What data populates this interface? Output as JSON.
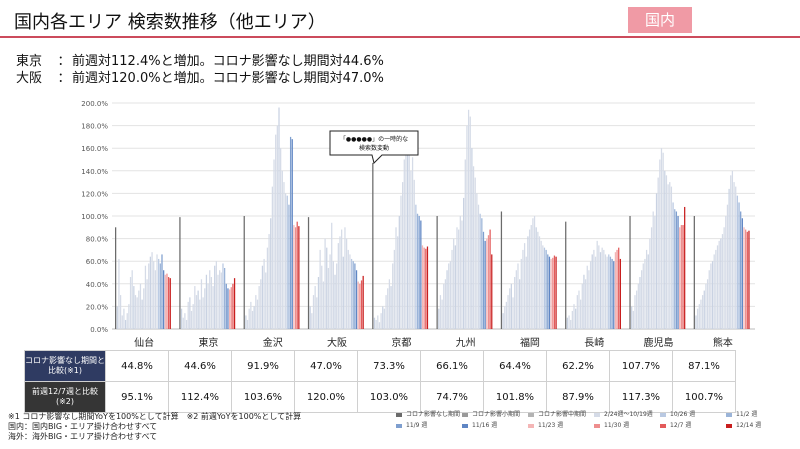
{
  "header": {
    "title": "国内各エリア 検索数推移（他エリア）",
    "badge": "国内"
  },
  "summary": [
    {
      "region": "東京",
      "sep": "：",
      "text": "前週対112.4%と増加。コロナ影響なし期間対44.6%"
    },
    {
      "region": "大阪",
      "sep": "：",
      "text": "前週対120.0%と増加。コロナ影響なし期間対47.0%"
    }
  ],
  "callout": {
    "line1": "「●●●●●」の一時的な",
    "line2": "検索数変動"
  },
  "table": {
    "row1_label": "コロナ影響なし期間と比較(※1)",
    "row2_label": "前週12/7週と比較(※2)",
    "row1": [
      "44.8%",
      "44.6%",
      "91.9%",
      "47.0%",
      "73.3%",
      "66.1%",
      "64.4%",
      "62.2%",
      "107.7%",
      "87.1%"
    ],
    "row2": [
      "95.1%",
      "112.4%",
      "103.6%",
      "120.0%",
      "103.0%",
      "74.7%",
      "101.8%",
      "87.9%",
      "117.3%",
      "100.7%"
    ]
  },
  "footnotes": {
    "note1": "※1 コロナ影響なし期間YoYを100%として計算　※2 前週YoYを100%として計算",
    "note2": "国内：国内BIG・エリア掛け合わせすべて",
    "note3": "海外：海外BIG・エリア掛け合わせすべて"
  },
  "chart_data": {
    "type": "bar",
    "ylim": [
      0,
      200
    ],
    "yticks": [
      "0.0%",
      "20.0%",
      "40.0%",
      "60.0%",
      "80.0%",
      "100.0%",
      "120.0%",
      "140.0%",
      "160.0%",
      "180.0%",
      "200.0%"
    ],
    "categories": [
      "仙台",
      "東京",
      "金沢",
      "大阪",
      "京都",
      "九州",
      "福岡",
      "長崎",
      "鹿児島",
      "熊本"
    ],
    "legend": [
      {
        "name": "コロナ影響なし期間",
        "color": "#6b6b6b"
      },
      {
        "name": "コロナ影響小期間",
        "color": "#9a9a9a"
      },
      {
        "name": "コロナ影響中期間",
        "color": "#b3b3b3"
      },
      {
        "name": "2/24週〜10/19週",
        "color": "#d5dbe7"
      },
      {
        "name": "10/26 週",
        "color": "#b9c9e2"
      },
      {
        "name": "11/2 週",
        "color": "#9bb4d8"
      },
      {
        "name": "11/9 週",
        "color": "#7f9fcf"
      },
      {
        "name": "11/16 週",
        "color": "#5f86c4"
      },
      {
        "name": "11/23 週",
        "color": "#f4b6b6"
      },
      {
        "name": "11/30 週",
        "color": "#ee8e8e"
      },
      {
        "name": "12/7 週",
        "color": "#e35a5a"
      },
      {
        "name": "12/14 週",
        "color": "#c81e1e"
      }
    ],
    "series": [
      {
        "area": "仙台",
        "base": 90,
        "weekly": [
          20,
          62,
          30,
          12,
          18,
          8,
          14,
          22,
          46,
          52,
          38,
          30,
          28,
          34,
          40,
          26,
          36,
          56,
          44,
          58,
          64,
          68,
          60,
          52,
          66
        ],
        "recent": [
          62,
          58,
          66,
          52,
          48,
          49,
          46,
          45
        ]
      },
      {
        "area": "東京",
        "base": 99,
        "weekly": [
          18,
          10,
          14,
          8,
          24,
          28,
          16,
          22,
          38,
          30,
          34,
          26,
          44,
          28,
          36,
          48,
          40,
          52,
          46,
          38,
          56,
          60,
          48,
          52,
          50
        ],
        "recent": [
          58,
          54,
          40,
          36,
          35,
          37,
          40,
          45
        ]
      },
      {
        "area": "金沢",
        "base": 100,
        "weekly": [
          12,
          8,
          18,
          24,
          16,
          20,
          30,
          26,
          38,
          44,
          56,
          62,
          50,
          72,
          84,
          98,
          126,
          150,
          172,
          180,
          196,
          160,
          140,
          130,
          120
        ],
        "recent": [
          118,
          110,
          170,
          168,
          92,
          90,
          95,
          91
        ]
      },
      {
        "area": "大阪",
        "base": 99,
        "weekly": [
          20,
          14,
          30,
          38,
          28,
          46,
          70,
          56,
          42,
          80,
          72,
          54,
          66,
          94,
          60,
          48,
          58,
          76,
          82,
          88,
          64,
          90,
          80,
          70,
          66
        ],
        "recent": [
          62,
          60,
          58,
          52,
          42,
          40,
          43,
          47
        ]
      },
      {
        "area": "京都",
        "base": 147,
        "weekly": [
          10,
          8,
          12,
          6,
          14,
          20,
          18,
          30,
          36,
          44,
          38,
          58,
          70,
          90,
          82,
          100,
          118,
          130,
          150,
          162,
          170,
          156,
          140,
          152,
          132
        ],
        "recent": [
          110,
          102,
          100,
          96,
          74,
          72,
          71,
          73
        ]
      },
      {
        "area": "九州",
        "base": 100,
        "weekly": [
          18,
          30,
          26,
          40,
          44,
          52,
          58,
          60,
          70,
          80,
          74,
          90,
          88,
          100,
          96,
          116,
          150,
          180,
          194,
          188,
          160,
          144,
          134,
          120,
          110
        ],
        "recent": [
          102,
          98,
          86,
          78,
          80,
          83,
          88,
          66
        ]
      },
      {
        "area": "福岡",
        "base": 104,
        "weekly": [
          14,
          20,
          24,
          30,
          36,
          40,
          28,
          46,
          52,
          58,
          44,
          62,
          70,
          76,
          64,
          82,
          88,
          92,
          98,
          100,
          90,
          86,
          82,
          78,
          74
        ],
        "recent": [
          72,
          70,
          66,
          64,
          62,
          63,
          65,
          64
        ]
      },
      {
        "area": "長崎",
        "base": 95,
        "weekly": [
          10,
          12,
          8,
          16,
          22,
          18,
          30,
          34,
          26,
          40,
          48,
          44,
          56,
          52,
          60,
          66,
          70,
          64,
          78,
          74,
          68,
          72,
          70,
          66,
          64
        ],
        "recent": [
          66,
          64,
          62,
          60,
          68,
          70,
          72,
          62
        ]
      },
      {
        "area": "鹿児島",
        "base": 100,
        "weekly": [
          20,
          16,
          30,
          34,
          40,
          46,
          52,
          58,
          62,
          70,
          66,
          80,
          90,
          104,
          100,
          120,
          134,
          150,
          160,
          156,
          140,
          136,
          128,
          130,
          126
        ],
        "recent": [
          112,
          106,
          104,
          100,
          90,
          92,
          92,
          108
        ]
      },
      {
        "area": "熊本",
        "base": 100,
        "weekly": [
          12,
          18,
          22,
          26,
          30,
          34,
          40,
          44,
          52,
          58,
          60,
          66,
          70,
          74,
          78,
          80,
          84,
          90,
          100,
          110,
          124,
          136,
          140,
          130,
          126
        ],
        "recent": [
          118,
          112,
          104,
          98,
          90,
          88,
          86,
          87
        ]
      }
    ]
  }
}
